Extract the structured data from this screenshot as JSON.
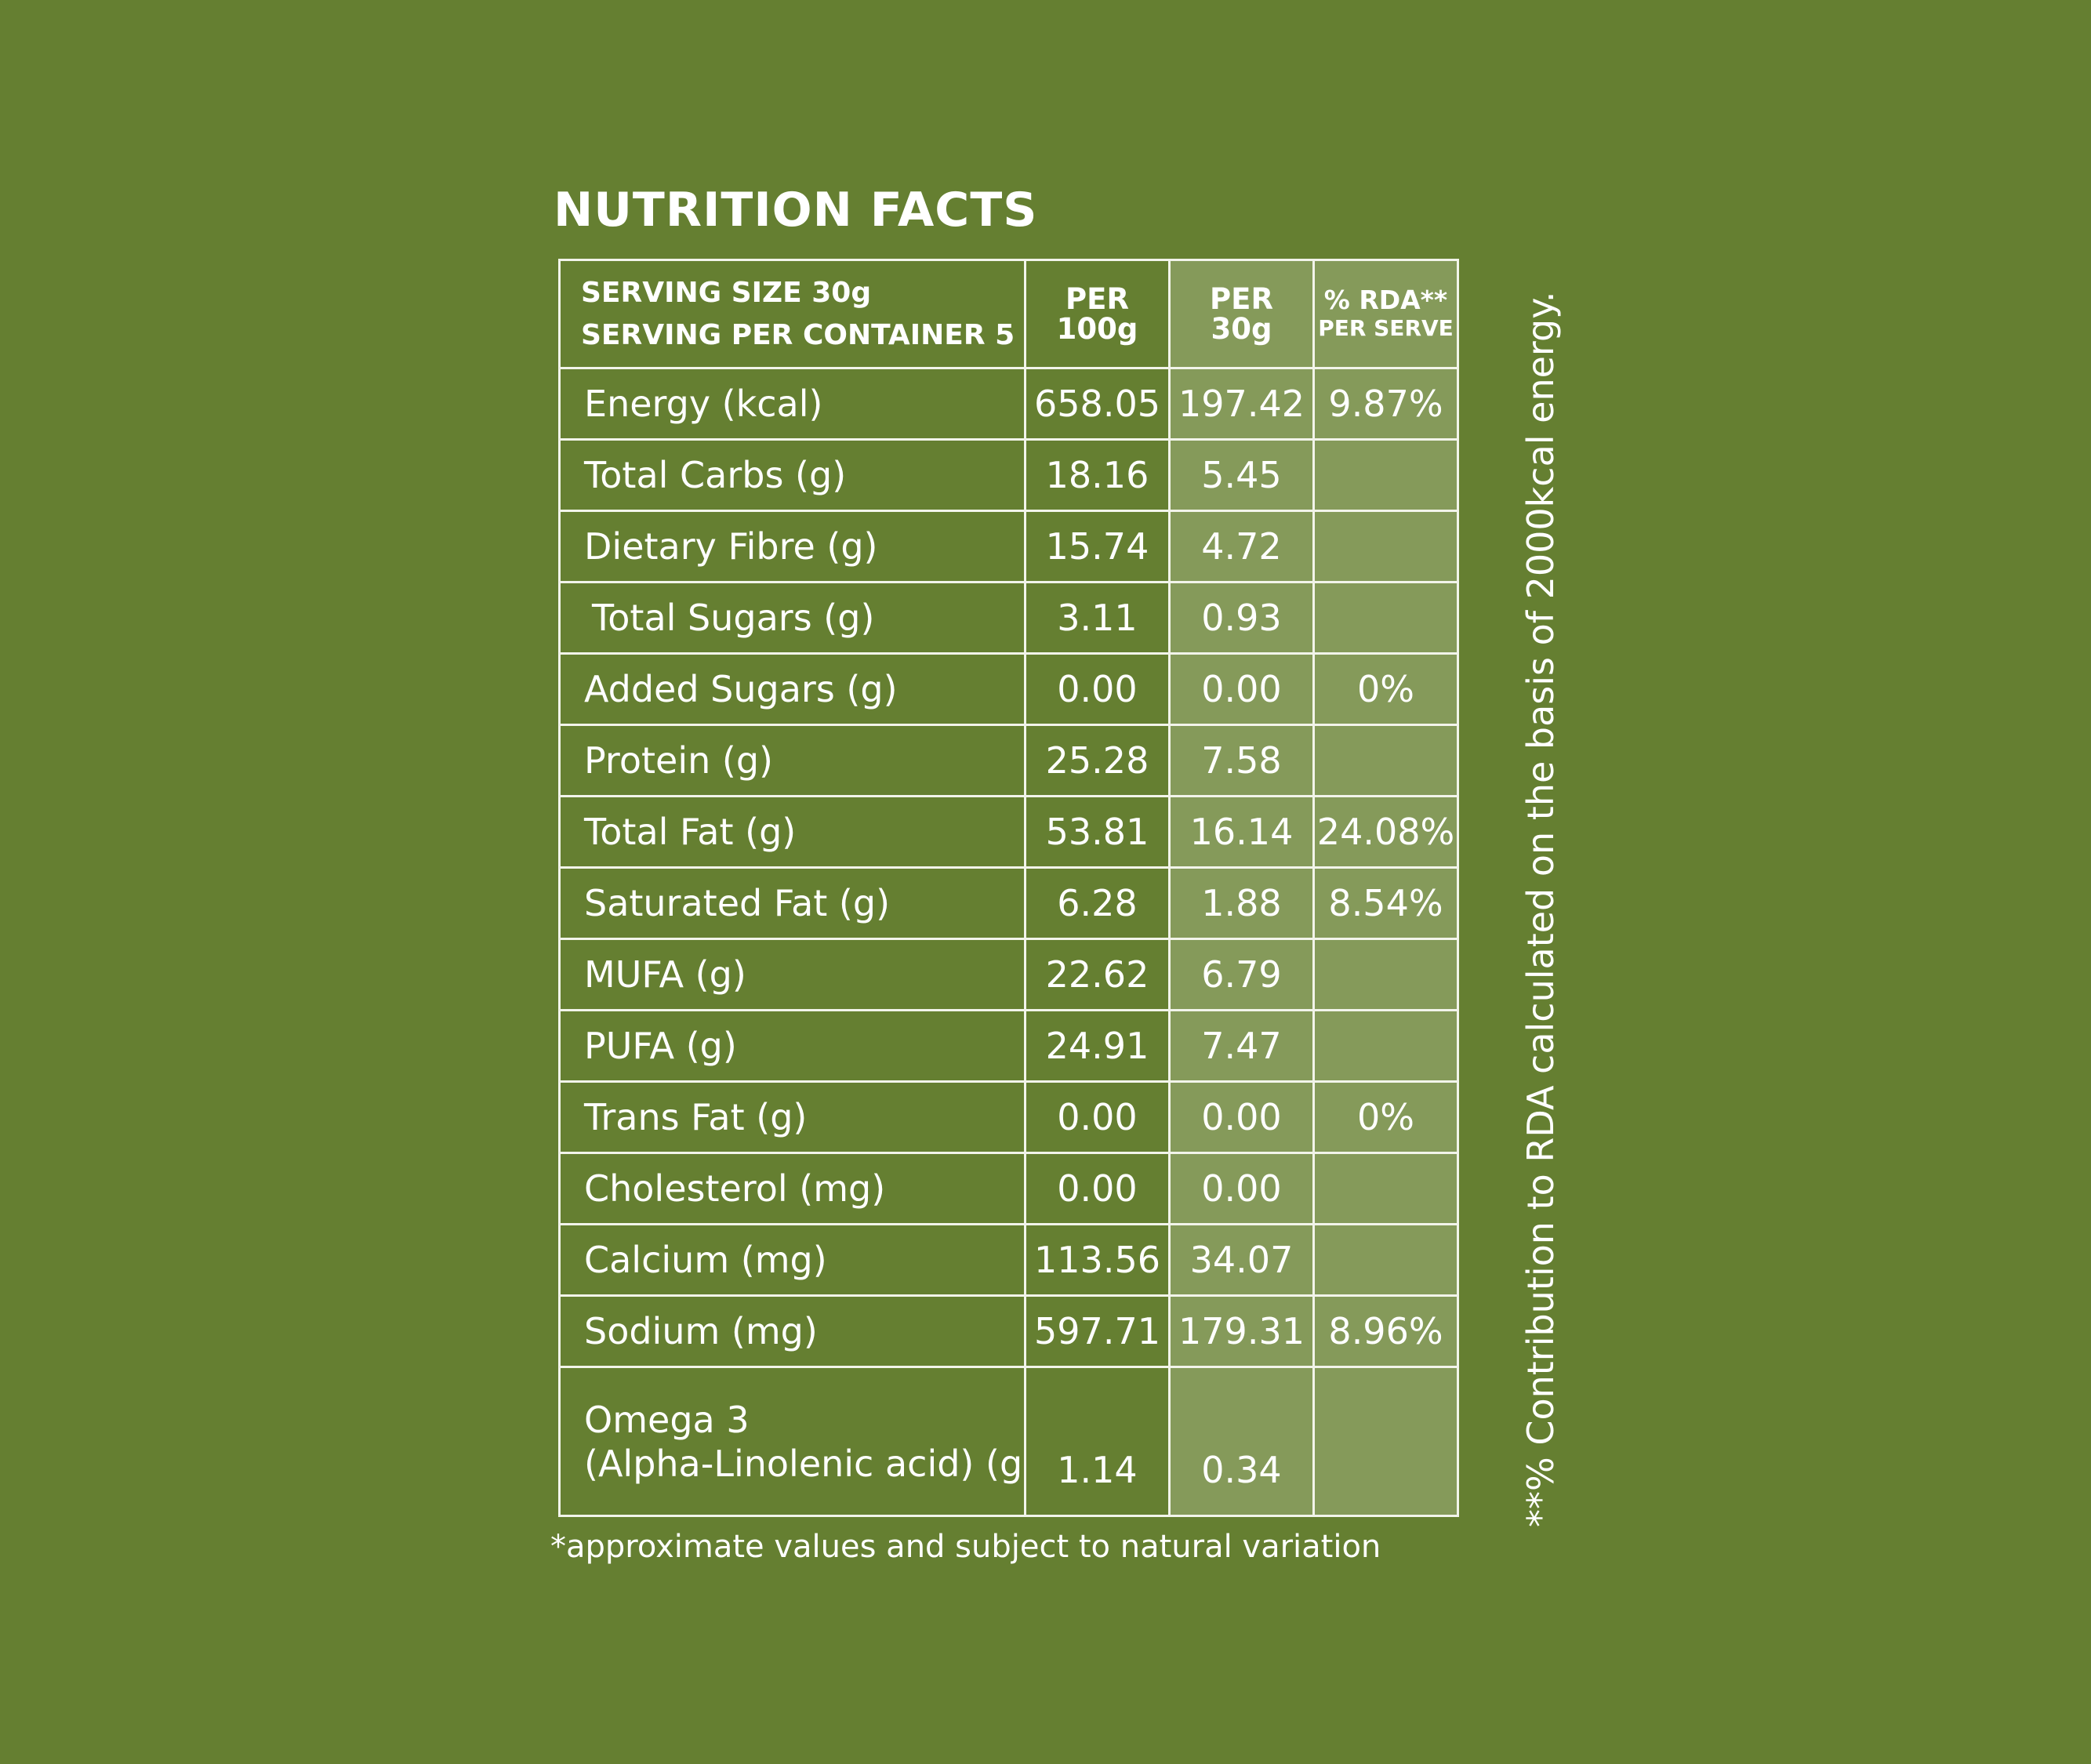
{
  "title": "NUTRITION FACTS",
  "header": {
    "serving_size": "SERVING SIZE 30g",
    "serving_per_container": "SERVING PER CONTAINER 5",
    "col_per100_line1": "PER",
    "col_per100_line2": "100g",
    "col_per30_line1": "PER",
    "col_per30_line2": "30g",
    "col_rda_line1": "% RDA**",
    "col_rda_line2": "PER SERVE"
  },
  "rows": [
    {
      "label": "Energy (kcal)",
      "per100": "658.05",
      "per30": "197.42",
      "rda": "9.87%"
    },
    {
      "label": "Total Carbs (g)",
      "per100": "18.16",
      "per30": "5.45",
      "rda": ""
    },
    {
      "label": "Dietary Fibre (g)",
      "per100": "15.74",
      "per30": "4.72",
      "rda": ""
    },
    {
      "label": "Total Sugars (g)",
      "per100": "3.11",
      "per30": "0.93",
      "rda": ""
    },
    {
      "label": "Added Sugars (g)",
      "per100": "0.00",
      "per30": "0.00",
      "rda": "0%"
    },
    {
      "label": "Protein (g)",
      "per100": "25.28",
      "per30": "7.58",
      "rda": ""
    },
    {
      "label": "Total Fat (g)",
      "per100": "53.81",
      "per30": "16.14",
      "rda": "24.08%"
    },
    {
      "label": "Saturated Fat (g)",
      "per100": "6.28",
      "per30": "1.88",
      "rda": "8.54%"
    },
    {
      "label": "MUFA (g)",
      "per100": "22.62",
      "per30": "6.79",
      "rda": ""
    },
    {
      "label": "PUFA (g)",
      "per100": "24.91",
      "per30": "7.47",
      "rda": ""
    },
    {
      "label": "Trans Fat (g)",
      "per100": "0.00",
      "per30": "0.00",
      "rda": "0%"
    },
    {
      "label": "Cholesterol (mg)",
      "per100": "0.00",
      "per30": "0.00",
      "rda": ""
    },
    {
      "label": "Calcium (mg)",
      "per100": "113.56",
      "per30": "34.07",
      "rda": ""
    },
    {
      "label": "Sodium (mg)",
      "per100": "597.71",
      "per30": "179.31",
      "rda": "8.96%"
    },
    {
      "label_line1": "Omega 3",
      "label_line2": "(Alpha-Linolenic acid) (g)",
      "per100": "1.14",
      "per30": "0.34",
      "rda": ""
    }
  ],
  "footnote": "*approximate values and subject to natural variation",
  "side_note": "**% Contribution to RDA calculated on the basis of 2000kcal energy.",
  "colors": {
    "background": "#657f31",
    "shaded_cell": "#859a5a",
    "text": "#ffffff",
    "border": "#f2f4ea"
  }
}
